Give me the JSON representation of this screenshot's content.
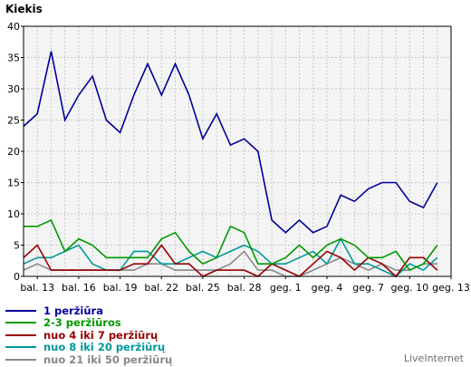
{
  "brand": "LiveInternet",
  "chart_data": {
    "type": "line",
    "ylabel": "Kiekis",
    "ylim": [
      0,
      40
    ],
    "yticks": [
      0,
      5,
      10,
      15,
      20,
      25,
      30,
      35,
      40
    ],
    "grid": true,
    "legend_placement": "bottom-left",
    "categories": [
      "bal. 12",
      "bal. 13",
      "bal. 14",
      "bal. 15",
      "bal. 16",
      "bal. 17",
      "bal. 18",
      "bal. 19",
      "bal. 20",
      "bal. 21",
      "bal. 22",
      "bal. 23",
      "bal. 24",
      "bal. 25",
      "bal. 26",
      "bal. 27",
      "bal. 28",
      "bal. 29",
      "bal. 30",
      "geg. 1",
      "geg. 2",
      "geg. 3",
      "geg. 4",
      "geg. 5",
      "geg. 6",
      "geg. 7",
      "geg. 8",
      "geg. 9",
      "geg. 10",
      "geg. 11",
      "geg. 12",
      "geg. 13"
    ],
    "xticks": [
      "bal. 13",
      "bal. 16",
      "bal. 19",
      "bal. 22",
      "bal. 25",
      "bal. 28",
      "geg. 1",
      "geg. 4",
      "geg. 7",
      "geg. 10",
      "geg. 13"
    ],
    "series": [
      {
        "name": "1 peržiūra",
        "color": "#000099",
        "values": [
          24,
          26,
          36,
          25,
          29,
          32,
          25,
          23,
          29,
          34,
          29,
          34,
          29,
          22,
          26,
          21,
          22,
          20,
          9,
          7,
          9,
          7,
          8,
          13,
          12,
          14,
          15,
          15,
          12,
          11,
          15,
          null
        ]
      },
      {
        "name": "2-3 peržiūros",
        "color": "#009900",
        "values": [
          8,
          8,
          9,
          4,
          6,
          5,
          3,
          3,
          3,
          3,
          6,
          7,
          4,
          2,
          3,
          8,
          7,
          2,
          2,
          3,
          5,
          3,
          5,
          6,
          5,
          3,
          3,
          4,
          1,
          2,
          5,
          null
        ]
      },
      {
        "name": "nuo 4 iki 7 peržiūrų",
        "color": "#990000",
        "values": [
          3,
          5,
          1,
          1,
          1,
          1,
          1,
          1,
          2,
          2,
          5,
          2,
          2,
          0,
          1,
          1,
          1,
          0,
          2,
          1,
          0,
          2,
          4,
          3,
          1,
          3,
          2,
          0,
          3,
          3,
          1,
          null
        ]
      },
      {
        "name": "nuo 8 iki 20 peržiūrų",
        "color": "#009999",
        "values": [
          2,
          3,
          3,
          4,
          5,
          2,
          1,
          1,
          4,
          4,
          2,
          2,
          3,
          4,
          3,
          4,
          5,
          4,
          2,
          2,
          3,
          4,
          2,
          6,
          2,
          2,
          1,
          0,
          2,
          1,
          3,
          null
        ]
      },
      {
        "name": "nuo 21 iki 50 peržiūrų",
        "color": "#888888",
        "values": [
          1,
          2,
          1,
          1,
          1,
          1,
          1,
          1,
          1,
          2,
          2,
          1,
          1,
          1,
          1,
          2,
          4,
          1,
          1,
          0,
          0,
          1,
          2,
          3,
          2,
          1,
          2,
          1,
          1,
          2,
          2,
          null
        ]
      }
    ]
  }
}
